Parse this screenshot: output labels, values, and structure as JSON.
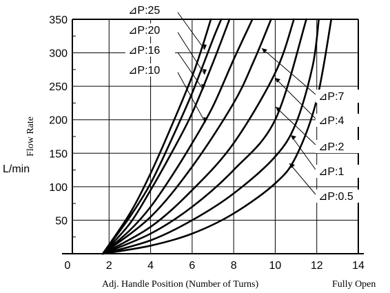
{
  "chart_data": {
    "type": "line",
    "title": "",
    "xlabel": "Adj. Handle Position (Number of Turns)",
    "xlabel_end": "Fully Open",
    "ylabel": "Flow Rate",
    "yunit": "L/min",
    "xlim": [
      0,
      14
    ],
    "ylim": [
      0,
      350
    ],
    "xticks": [
      0,
      2,
      4,
      6,
      8,
      10,
      12,
      14
    ],
    "yticks": [
      50,
      100,
      150,
      200,
      250,
      300,
      350
    ],
    "grid": true,
    "series": [
      {
        "name": "⊿P:25",
        "x": [
          1.7,
          3,
          4,
          5,
          6,
          6.5,
          6.9
        ],
        "y": [
          0,
          60,
          120,
          190,
          265,
          310,
          350
        ]
      },
      {
        "name": "⊿P:20",
        "x": [
          1.7,
          3,
          4,
          5,
          6,
          7,
          7.4
        ],
        "y": [
          0,
          55,
          105,
          170,
          240,
          320,
          350
        ]
      },
      {
        "name": "⊿P:16",
        "x": [
          1.7,
          3,
          4,
          5,
          6,
          7,
          7.8
        ],
        "y": [
          0,
          45,
          95,
          150,
          210,
          285,
          350
        ]
      },
      {
        "name": "⊿P:10",
        "x": [
          1.7,
          3,
          4,
          5,
          6,
          7,
          8,
          8.9
        ],
        "y": [
          0,
          35,
          70,
          115,
          165,
          220,
          290,
          350
        ]
      },
      {
        "name": "⊿P:7",
        "x": [
          1.7,
          4,
          6,
          8,
          9,
          9.8
        ],
        "y": [
          0,
          55,
          130,
          225,
          290,
          350
        ]
      },
      {
        "name": "⊿P:4",
        "x": [
          1.7,
          4,
          6,
          8,
          10,
          10.9
        ],
        "y": [
          0,
          40,
          95,
          165,
          270,
          350
        ]
      },
      {
        "name": "⊿P:2",
        "x": [
          1.7,
          4,
          6,
          8,
          10,
          11.5
        ],
        "y": [
          0,
          30,
          70,
          125,
          200,
          350
        ]
      },
      {
        "name": "⊿P:1",
        "x": [
          1.7,
          4,
          6,
          8,
          10,
          11,
          11.8,
          12.1
        ],
        "y": [
          0,
          20,
          50,
          90,
          145,
          195,
          280,
          350
        ]
      },
      {
        "name": "⊿P:0.5",
        "x": [
          1.7,
          4,
          6,
          8,
          10,
          11,
          12,
          12.7
        ],
        "y": [
          0,
          12,
          30,
          60,
          105,
          145,
          230,
          350
        ]
      }
    ]
  }
}
